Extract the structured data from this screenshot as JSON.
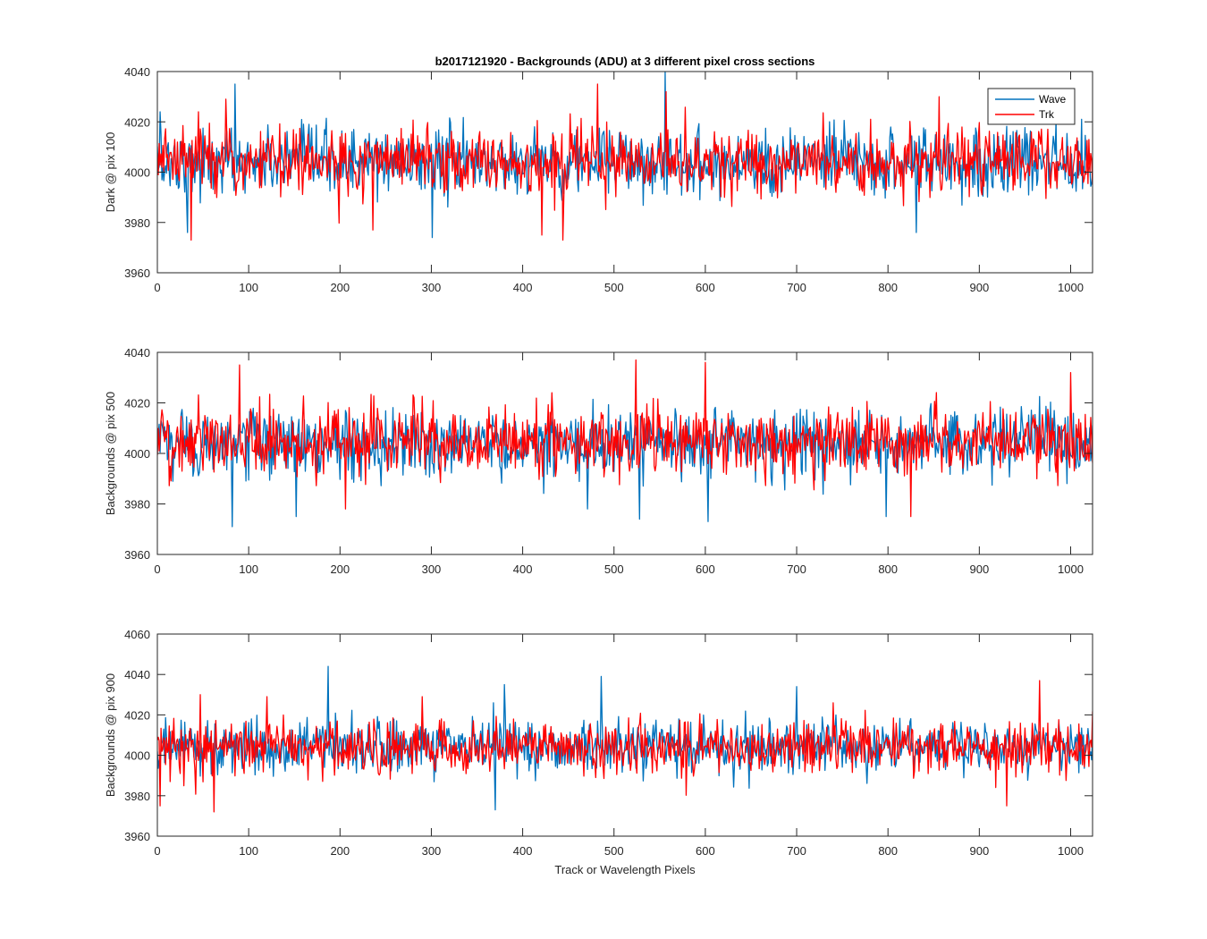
{
  "figure": {
    "title": "b2017121920 - Backgrounds (ADU) at 3 different pixel cross sections",
    "xlabel": "Track or Wavelength Pixels"
  },
  "legend": {
    "placement": "top-right",
    "entries": [
      {
        "name": "Wave",
        "color": "#0072BD"
      },
      {
        "name": "Trk",
        "color": "#FF0000"
      }
    ]
  },
  "chart_data": [
    {
      "type": "line",
      "ylabel": "Dark @ pix 100",
      "xlim": [
        0,
        1024
      ],
      "ylim": [
        3960,
        4040
      ],
      "xticks": [
        0,
        100,
        200,
        300,
        400,
        500,
        600,
        700,
        800,
        900,
        1000
      ],
      "yticks": [
        3960,
        3980,
        4000,
        4020,
        4040
      ],
      "series": [
        {
          "name": "Wave",
          "color": "#0072BD",
          "mean": 4004,
          "spread": 6.5,
          "spikes": [
            [
              3,
              4024
            ],
            [
              33,
              3976
            ],
            [
              85,
              4035
            ],
            [
              301,
              3974
            ],
            [
              556,
              4040
            ],
            [
              831,
              3976
            ],
            [
              1012,
              4021
            ]
          ]
        },
        {
          "name": "Trk",
          "color": "#FF0000",
          "mean": 4004,
          "spread": 6.5,
          "spikes": [
            [
              37,
              3973
            ],
            [
              45,
              4024
            ],
            [
              236,
              3977
            ],
            [
              421,
              3975
            ],
            [
              444,
              3973
            ],
            [
              482,
              4035
            ],
            [
              557,
              4032
            ],
            [
              856,
              4030
            ]
          ]
        }
      ]
    },
    {
      "type": "line",
      "ylabel": "Backgrounds @ pix 500",
      "xlim": [
        0,
        1024
      ],
      "ylim": [
        3960,
        4040
      ],
      "xticks": [
        0,
        100,
        200,
        300,
        400,
        500,
        600,
        700,
        800,
        900,
        1000
      ],
      "yticks": [
        3960,
        3980,
        4000,
        4020,
        4040
      ],
      "series": [
        {
          "name": "Wave",
          "color": "#0072BD",
          "mean": 4004,
          "spread": 6.5,
          "spikes": [
            [
              82,
              3971
            ],
            [
              152,
              3975
            ],
            [
              471,
              3978
            ],
            [
              528,
              3974
            ],
            [
              603,
              3973
            ],
            [
              798,
              3975
            ]
          ]
        },
        {
          "name": "Trk",
          "color": "#FF0000",
          "mean": 4005,
          "spread": 6.5,
          "spikes": [
            [
              90,
              4035
            ],
            [
              206,
              3978
            ],
            [
              524,
              4037
            ],
            [
              600,
              4036
            ],
            [
              825,
              3975
            ],
            [
              1000,
              4032
            ]
          ]
        }
      ]
    },
    {
      "type": "line",
      "ylabel": "Backgrounds @ pix 900",
      "xlim": [
        0,
        1024
      ],
      "ylim": [
        3960,
        4060
      ],
      "xticks": [
        0,
        100,
        200,
        300,
        400,
        500,
        600,
        700,
        800,
        900,
        1000
      ],
      "yticks": [
        3960,
        3980,
        4000,
        4020,
        4040,
        4060
      ],
      "series": [
        {
          "name": "Wave",
          "color": "#0072BD",
          "mean": 4004,
          "spread": 6.5,
          "spikes": [
            [
              187,
              4044
            ],
            [
              368,
              4026
            ],
            [
              370,
              3973
            ],
            [
              380,
              4035
            ],
            [
              486,
              4039
            ],
            [
              700,
              4034
            ]
          ]
        },
        {
          "name": "Trk",
          "color": "#FF0000",
          "mean": 4004,
          "spread": 6.5,
          "spikes": [
            [
              3,
              3975
            ],
            [
              47,
              4030
            ],
            [
              62,
              3972
            ],
            [
              120,
              4029
            ],
            [
              290,
              4029
            ],
            [
              930,
              3975
            ],
            [
              966,
              4037
            ]
          ]
        }
      ]
    }
  ]
}
